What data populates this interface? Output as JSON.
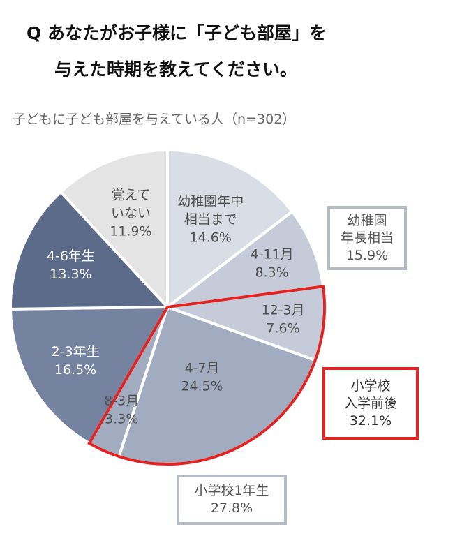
{
  "header": {
    "title_line1": "Q あなたがお子様に「子ども部屋」を",
    "title_line2": "与えた時期を教えてください。",
    "subtitle": "子どもに子ども部屋を与えている人（n=302）"
  },
  "chart_data": {
    "type": "pie",
    "start": "12 o'clock",
    "direction": "clockwise",
    "slices": [
      {
        "label_lines": [
          "幼稚園年中",
          "相当まで"
        ],
        "value": 14.6,
        "value_label": "14.6%",
        "color": "#d9dde6",
        "text_color": "#505050"
      },
      {
        "label_lines": [
          "4-11月"
        ],
        "value": 8.3,
        "value_label": "8.3%",
        "color": "#c5cbd8",
        "text_color": "#505050"
      },
      {
        "label_lines": [
          "12-3月"
        ],
        "value": 7.6,
        "value_label": "7.6%",
        "color": "#c5cbd8",
        "text_color": "#505050"
      },
      {
        "label_lines": [
          "4-7月"
        ],
        "value": 24.5,
        "value_label": "24.5%",
        "color": "#a2acc1",
        "text_color": "#505050"
      },
      {
        "label_lines": [
          "8-3月"
        ],
        "value": 3.3,
        "value_label": "3.3%",
        "color": "#a2acc1",
        "text_color": "#505050"
      },
      {
        "label_lines": [
          "2-3年生"
        ],
        "value": 16.5,
        "value_label": "16.5%",
        "color": "#7583a0",
        "text_color": "#ffffff"
      },
      {
        "label_lines": [
          "4-6年生"
        ],
        "value": 13.3,
        "value_label": "13.3%",
        "color": "#5b6b89",
        "text_color": "#ffffff"
      },
      {
        "label_lines": [
          "覚えて",
          "いない"
        ],
        "value": 11.9,
        "value_label": "11.9%",
        "color": "#e4e4e4",
        "text_color": "#505050"
      }
    ],
    "groups": [
      {
        "lines": [
          "幼稚園",
          "年長相当",
          "15.9%"
        ],
        "value": 15.9
      },
      {
        "lines": [
          "小学校",
          "入学前後",
          "32.1%"
        ],
        "value": 32.1,
        "highlight_color": "#e32222"
      },
      {
        "lines": [
          "小学校1年生",
          "27.8%"
        ],
        "value": 27.8
      }
    ]
  }
}
